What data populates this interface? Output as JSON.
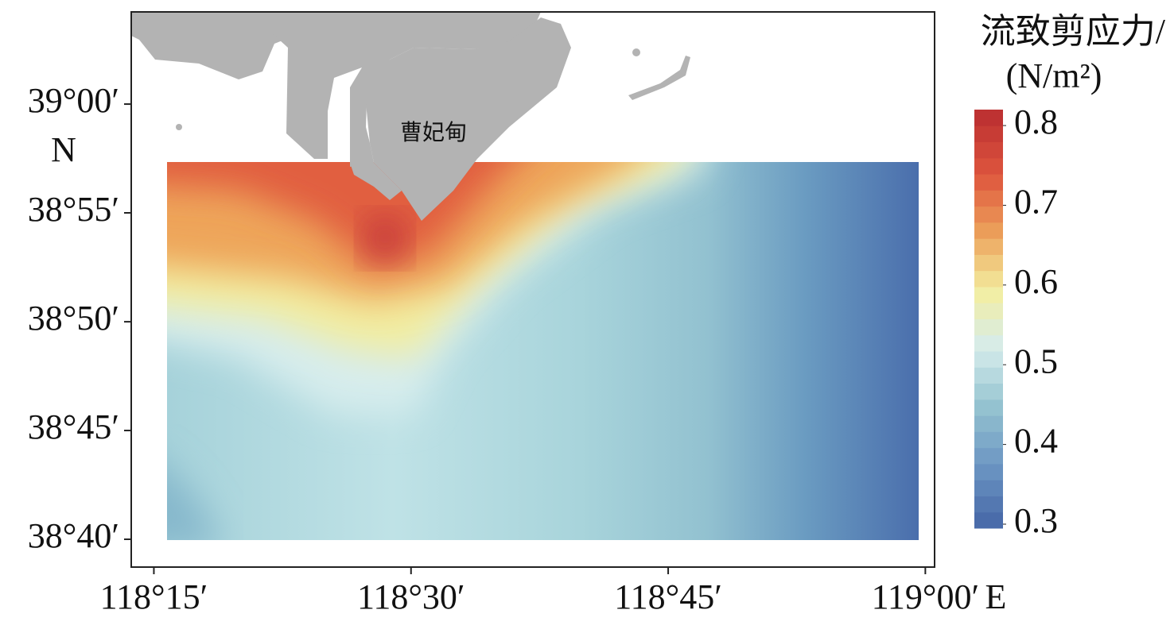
{
  "axes": {
    "xlim": [
      118.228,
      119.009
    ],
    "ylim": [
      38.6454,
      39.0706
    ],
    "xticks": [
      {
        "value": 118.25,
        "label": "118°15′"
      },
      {
        "value": 118.5,
        "label": "118°30′"
      },
      {
        "value": 118.75,
        "label": "118°45′"
      },
      {
        "value": 119,
        "label": "119°00′"
      }
    ],
    "yticks": [
      {
        "value": 39,
        "label": "39°00′"
      },
      {
        "value": 38.9167,
        "label": "38°55′"
      },
      {
        "value": 38.8333,
        "label": "38°50′"
      },
      {
        "value": 38.75,
        "label": "38°45′"
      },
      {
        "value": 38.6667,
        "label": "38°40′"
      }
    ],
    "x_unit": "E",
    "y_unit": "N"
  },
  "place_label": "曹妃甸",
  "colorbar": {
    "title": "流致剪应力/",
    "unit": "(N/m²)",
    "lim": [
      0.295,
      0.82
    ],
    "ticks": [
      0.8,
      0.7,
      0.6,
      0.5,
      0.4,
      0.3
    ]
  }
}
